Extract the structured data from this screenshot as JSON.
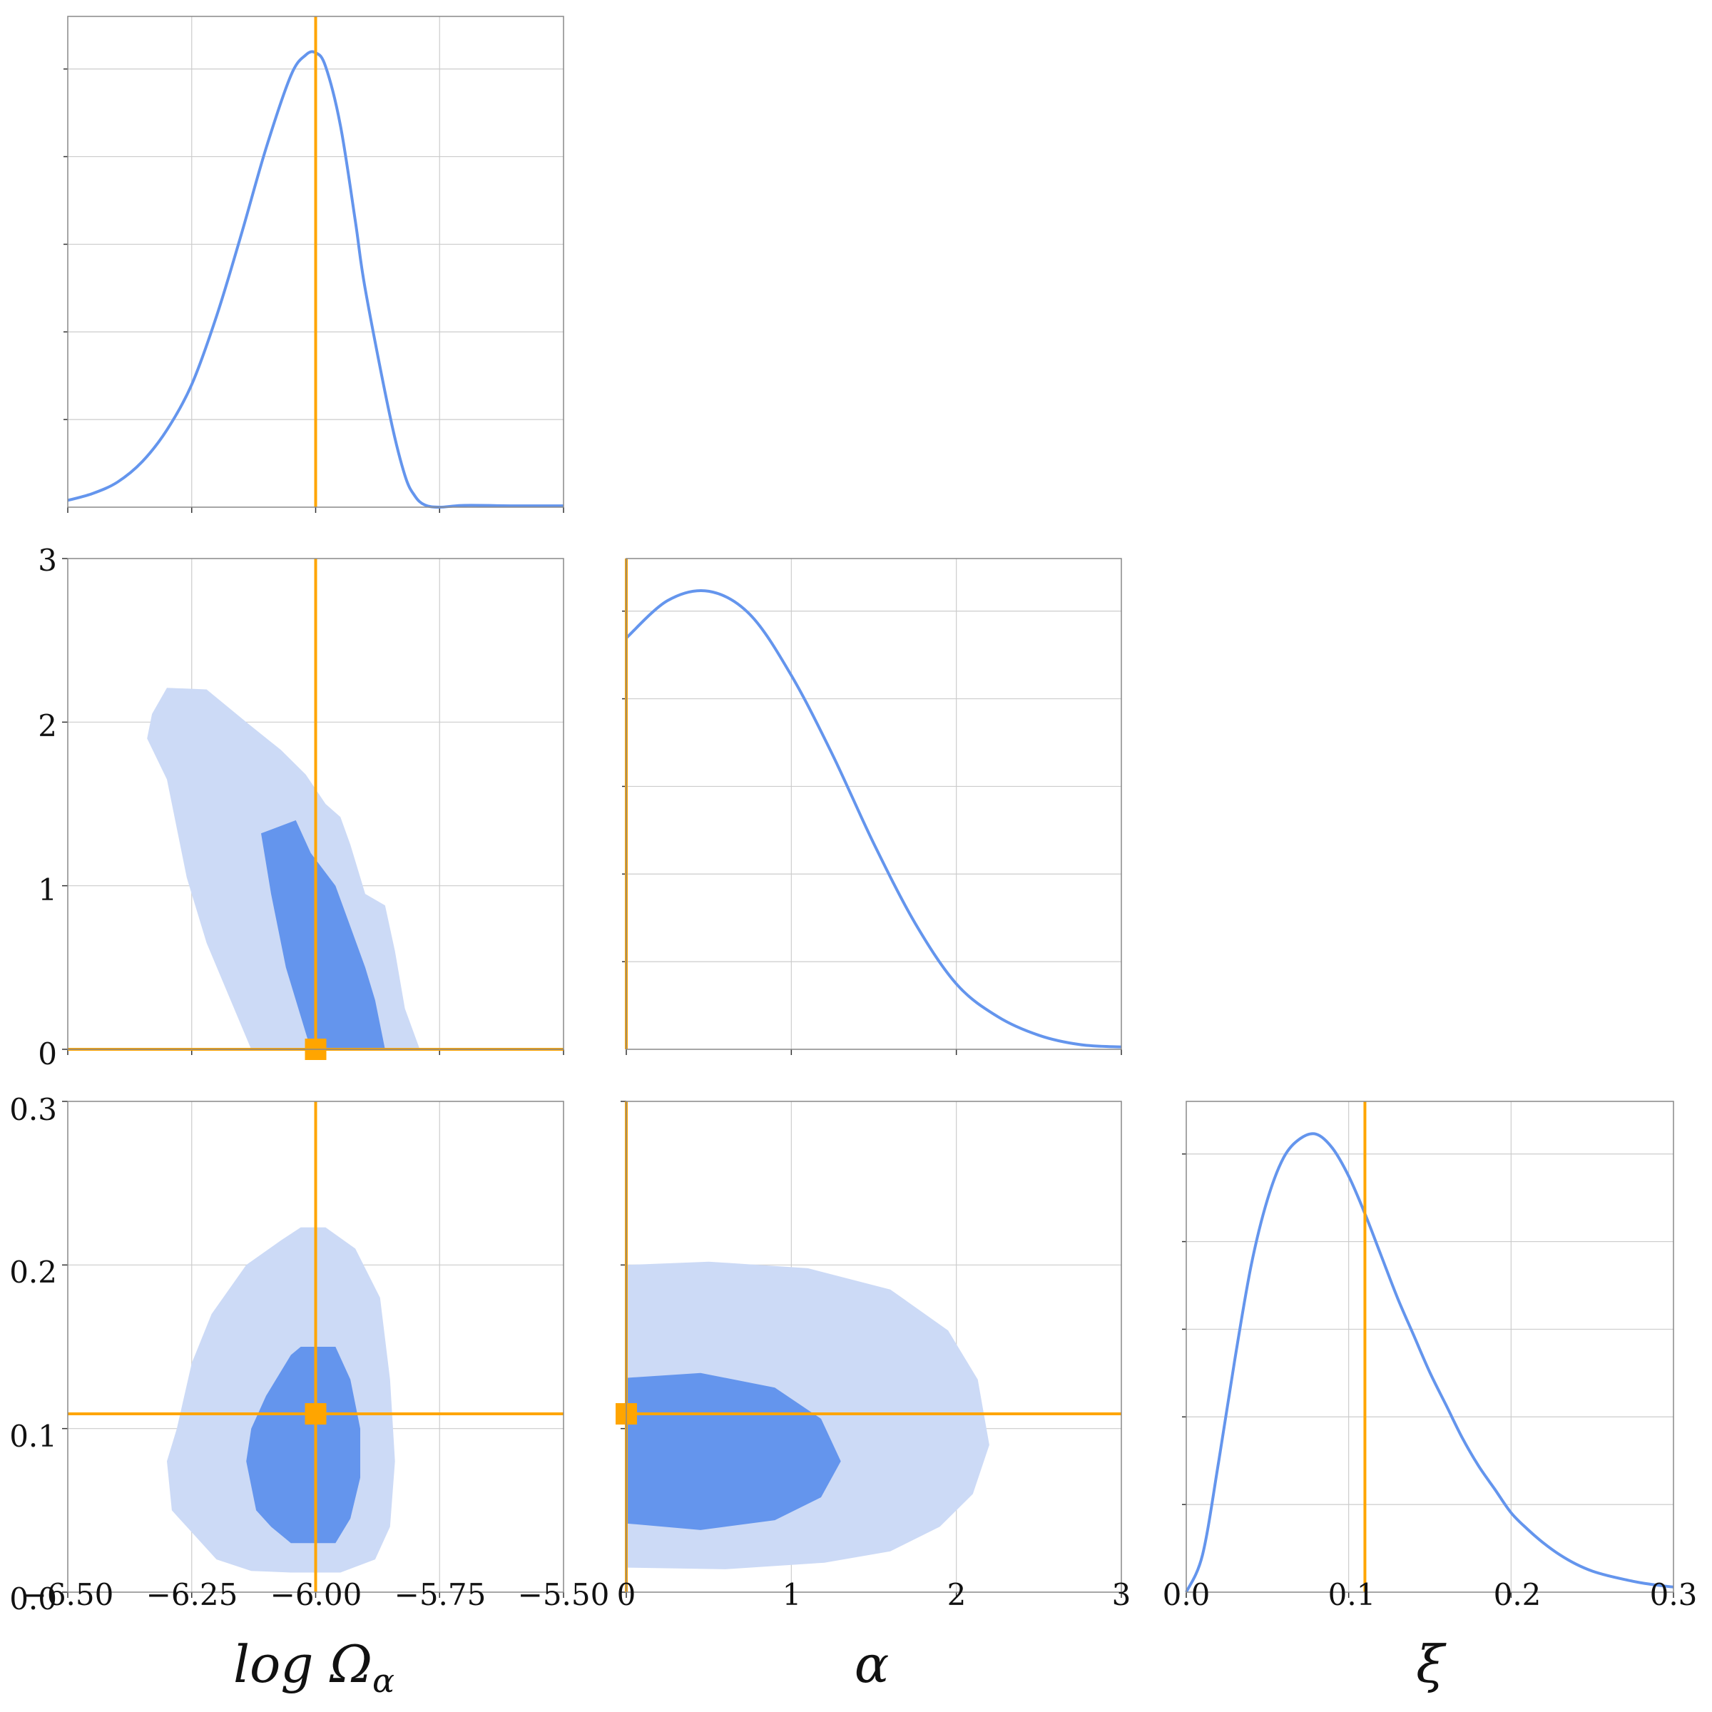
{
  "colors": {
    "curve": "#6495ED",
    "region_inner": "#6495ED",
    "region_outer": "#CCDAF6",
    "truth": "#FFA500",
    "grid": "#CCCCCC",
    "frame": "#888888"
  },
  "axes": {
    "logomega": {
      "label": "log Ω",
      "label_sub": "α",
      "range": [
        -6.5,
        -5.5
      ],
      "ticks": [
        -6.5,
        -6.25,
        -6.0,
        -5.75,
        -5.5
      ],
      "tick_labels": [
        "−6.50",
        "−6.25",
        "−6.00",
        "−5.75",
        "−5.50"
      ]
    },
    "alpha": {
      "label": "α",
      "range": [
        0,
        3
      ],
      "ticks": [
        0,
        1,
        2,
        3
      ],
      "tick_labels": [
        "0",
        "1",
        "2",
        "3"
      ]
    },
    "xi": {
      "label": "ξ",
      "range": [
        0.0,
        0.3
      ],
      "ticks": [
        0.0,
        0.1,
        0.2,
        0.3
      ],
      "tick_labels": [
        "0.0",
        "0.1",
        "0.2",
        "0.3"
      ]
    }
  },
  "chart_data": [
    {
      "type": "line",
      "panel": "logomega-marginal",
      "x": [
        -6.5,
        -6.45,
        -6.4,
        -6.35,
        -6.3,
        -6.25,
        -6.2,
        -6.15,
        -6.1,
        -6.05,
        -6.02,
        -6.0,
        -5.98,
        -5.95,
        -5.92,
        -5.9,
        -5.85,
        -5.82,
        -5.8,
        -5.78,
        -5.75,
        -5.7,
        -5.6,
        -5.5
      ],
      "y": [
        0.015,
        0.03,
        0.055,
        0.1,
        0.17,
        0.27,
        0.42,
        0.6,
        0.79,
        0.95,
        0.995,
        1.0,
        0.97,
        0.84,
        0.63,
        0.48,
        0.2,
        0.07,
        0.025,
        0.005,
        0.0,
        0.004,
        0.003,
        0.003
      ],
      "ylim": [
        0,
        1.08
      ],
      "truth_x": -6.0
    },
    {
      "type": "line",
      "panel": "alpha-marginal",
      "x": [
        0,
        0.25,
        0.5,
        0.75,
        1.0,
        1.25,
        1.5,
        1.75,
        2.0,
        2.25,
        2.5,
        2.75,
        3.0
      ],
      "y": [
        0.88,
        0.96,
        0.98,
        0.93,
        0.8,
        0.63,
        0.44,
        0.27,
        0.14,
        0.07,
        0.03,
        0.01,
        0.005
      ],
      "ylim": [
        0,
        1.05
      ],
      "truth_x": 0.0
    },
    {
      "type": "line",
      "panel": "xi-marginal",
      "x": [
        0.0,
        0.01,
        0.02,
        0.03,
        0.04,
        0.05,
        0.06,
        0.07,
        0.08,
        0.09,
        0.1,
        0.11,
        0.12,
        0.13,
        0.14,
        0.15,
        0.16,
        0.17,
        0.18,
        0.19,
        0.2,
        0.21,
        0.22,
        0.23,
        0.24,
        0.25,
        0.26,
        0.27,
        0.28,
        0.29,
        0.3
      ],
      "y": [
        0.0,
        0.08,
        0.28,
        0.5,
        0.7,
        0.84,
        0.93,
        0.97,
        0.98,
        0.95,
        0.89,
        0.81,
        0.72,
        0.63,
        0.55,
        0.47,
        0.4,
        0.33,
        0.27,
        0.22,
        0.17,
        0.135,
        0.105,
        0.08,
        0.06,
        0.045,
        0.035,
        0.027,
        0.02,
        0.015,
        0.011
      ],
      "ylim": [
        0,
        1.05
      ],
      "truth_x": 0.11
    },
    {
      "type": "contour",
      "panel": "logomega-alpha",
      "outer": [
        [
          -6.13,
          0.0
        ],
        [
          -6.22,
          0.65
        ],
        [
          -6.26,
          1.05
        ],
        [
          -6.3,
          1.65
        ],
        [
          -6.34,
          1.9
        ],
        [
          -6.33,
          2.05
        ],
        [
          -6.3,
          2.21
        ],
        [
          -6.22,
          2.2
        ],
        [
          -6.14,
          2.0
        ],
        [
          -6.07,
          1.83
        ],
        [
          -6.02,
          1.68
        ],
        [
          -5.98,
          1.5
        ],
        [
          -5.95,
          1.42
        ],
        [
          -5.93,
          1.25
        ],
        [
          -5.9,
          0.95
        ],
        [
          -5.86,
          0.88
        ],
        [
          -5.84,
          0.6
        ],
        [
          -5.82,
          0.25
        ],
        [
          -5.79,
          0.0
        ]
      ],
      "inner": [
        [
          -6.01,
          0.0
        ],
        [
          -6.06,
          0.5
        ],
        [
          -6.09,
          0.95
        ],
        [
          -6.11,
          1.32
        ],
        [
          -6.04,
          1.4
        ],
        [
          -6.01,
          1.2
        ],
        [
          -5.96,
          1.0
        ],
        [
          -5.93,
          0.75
        ],
        [
          -5.9,
          0.5
        ],
        [
          -5.88,
          0.3
        ],
        [
          -5.86,
          0.0
        ]
      ],
      "truth": [
        -6.0,
        0.0
      ]
    },
    {
      "type": "contour",
      "panel": "logomega-xi",
      "outer": [
        [
          -6.2,
          0.02
        ],
        [
          -6.26,
          0.04
        ],
        [
          -6.29,
          0.05
        ],
        [
          -6.3,
          0.08
        ],
        [
          -6.28,
          0.1
        ],
        [
          -6.25,
          0.14
        ],
        [
          -6.21,
          0.17
        ],
        [
          -6.14,
          0.2
        ],
        [
          -6.07,
          0.215
        ],
        [
          -6.03,
          0.223
        ],
        [
          -5.98,
          0.223
        ],
        [
          -5.92,
          0.21
        ],
        [
          -5.87,
          0.18
        ],
        [
          -5.85,
          0.13
        ],
        [
          -5.84,
          0.08
        ],
        [
          -5.85,
          0.04
        ],
        [
          -5.88,
          0.02
        ],
        [
          -5.95,
          0.012
        ],
        [
          -6.05,
          0.012
        ],
        [
          -6.13,
          0.013
        ]
      ],
      "inner": [
        [
          -6.12,
          0.05
        ],
        [
          -6.14,
          0.08
        ],
        [
          -6.13,
          0.1
        ],
        [
          -6.1,
          0.12
        ],
        [
          -6.05,
          0.145
        ],
        [
          -6.03,
          0.15
        ],
        [
          -5.96,
          0.15
        ],
        [
          -5.93,
          0.13
        ],
        [
          -5.91,
          0.1
        ],
        [
          -5.91,
          0.07
        ],
        [
          -5.93,
          0.045
        ],
        [
          -5.96,
          0.03
        ],
        [
          -6.05,
          0.03
        ],
        [
          -6.09,
          0.04
        ]
      ],
      "truth": [
        -6.0,
        0.109
      ]
    },
    {
      "type": "contour",
      "panel": "alpha-xi",
      "outer": [
        [
          0.0,
          0.015
        ],
        [
          0.6,
          0.014
        ],
        [
          1.2,
          0.018
        ],
        [
          1.6,
          0.025
        ],
        [
          1.9,
          0.04
        ],
        [
          2.1,
          0.06
        ],
        [
          2.2,
          0.09
        ],
        [
          2.13,
          0.13
        ],
        [
          1.95,
          0.16
        ],
        [
          1.6,
          0.185
        ],
        [
          1.1,
          0.198
        ],
        [
          0.5,
          0.202
        ],
        [
          0.0,
          0.2
        ]
      ],
      "inner": [
        [
          0.0,
          0.042
        ],
        [
          0.45,
          0.038
        ],
        [
          0.9,
          0.044
        ],
        [
          1.18,
          0.058
        ],
        [
          1.3,
          0.08
        ],
        [
          1.18,
          0.106
        ],
        [
          0.9,
          0.125
        ],
        [
          0.45,
          0.134
        ],
        [
          0.0,
          0.131
        ]
      ],
      "truth": [
        0.0,
        0.109
      ]
    }
  ]
}
